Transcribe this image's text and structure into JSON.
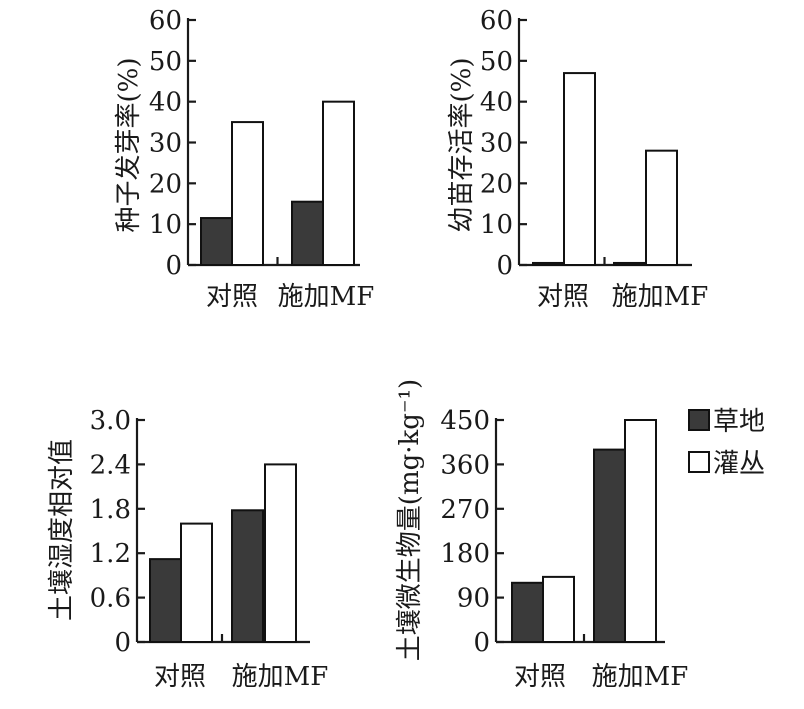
{
  "legend": [
    {
      "label": "草地",
      "fill": "#3a3a3a"
    },
    {
      "label": "灌丛",
      "fill": "#ffffff"
    }
  ],
  "chart_data": [
    {
      "type": "bar",
      "ylabel": "种子发芽率(%)",
      "categories": [
        "对照",
        "施加MF"
      ],
      "ylim": [
        0,
        60
      ],
      "yticks": [
        "0",
        "10",
        "20",
        "30",
        "40",
        "50",
        "60"
      ],
      "series": [
        {
          "name": "草地",
          "values": [
            11.5,
            15.5
          ]
        },
        {
          "name": "灌丛",
          "values": [
            35,
            40
          ]
        }
      ]
    },
    {
      "type": "bar",
      "ylabel": "幼苗存活率(%)",
      "categories": [
        "对照",
        "施加MF"
      ],
      "ylim": [
        0,
        60
      ],
      "yticks": [
        "0",
        "10",
        "20",
        "30",
        "40",
        "50",
        "60"
      ],
      "series": [
        {
          "name": "草地",
          "values": [
            0.5,
            0.5
          ]
        },
        {
          "name": "灌丛",
          "values": [
            47,
            28
          ]
        }
      ]
    },
    {
      "type": "bar",
      "ylabel": "土壤湿度相对值",
      "categories": [
        "对照",
        "施加MF"
      ],
      "ylim": [
        0,
        3.0
      ],
      "yticks": [
        "0",
        "0.6",
        "1.2",
        "1.8",
        "2.4",
        "3.0"
      ],
      "series": [
        {
          "name": "草地",
          "values": [
            1.12,
            1.78
          ]
        },
        {
          "name": "灌丛",
          "values": [
            1.6,
            2.4
          ]
        }
      ]
    },
    {
      "type": "bar",
      "ylabel": "土壤微生物量(mg·kg⁻¹)",
      "categories": [
        "对照",
        "施加MF"
      ],
      "ylim": [
        0,
        450
      ],
      "yticks": [
        "0",
        "90",
        "180",
        "270",
        "360",
        "450"
      ],
      "series": [
        {
          "name": "草地",
          "values": [
            120,
            390
          ]
        },
        {
          "name": "灌丛",
          "values": [
            132,
            450
          ]
        }
      ]
    }
  ]
}
